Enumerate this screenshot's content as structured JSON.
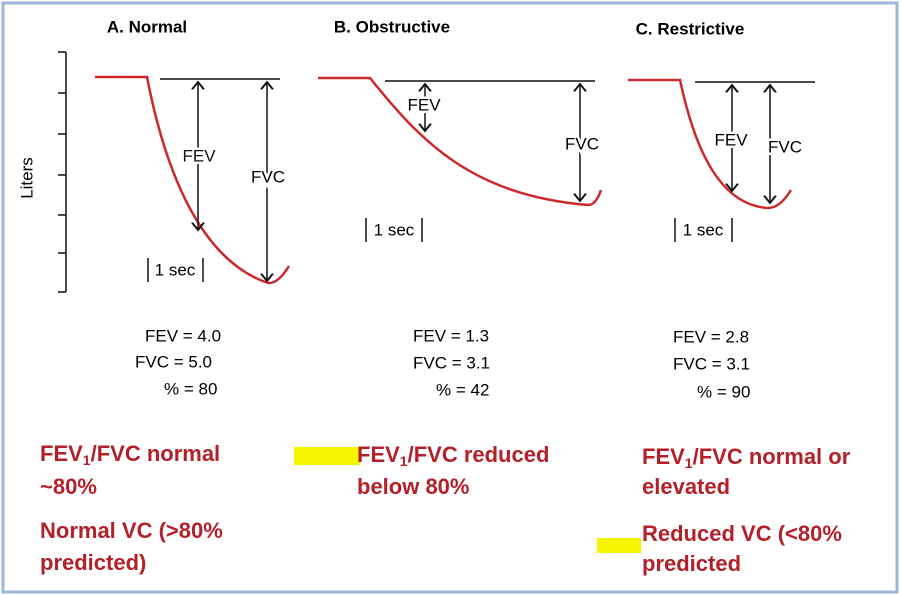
{
  "y_axis_label": "Liters",
  "panels": [
    {
      "title": "A. Normal",
      "fev_label": "FEV",
      "fvc_label": "FVC",
      "time_label": "1 sec",
      "stats": [
        "FEV = 4.0",
        "FVC = 5.0",
        "% = 80"
      ],
      "notes": [
        [
          "FEV",
          "1",
          "/FVC normal"
        ],
        [
          "~80%"
        ],
        [
          "Normal VC (>80%"
        ],
        [
          "predicted)"
        ]
      ]
    },
    {
      "title": "B. Obstructive",
      "fev_label": "FEV",
      "fvc_label": "FVC",
      "time_label": "1 sec",
      "stats": [
        "FEV = 1.3",
        "FVC = 3.1",
        "% = 42"
      ],
      "notes": [
        [
          "FEV",
          "1",
          "/FVC reduced"
        ],
        [
          "below 80%"
        ]
      ]
    },
    {
      "title": "C. Restrictive",
      "fev_label": "FEV",
      "fvc_label": "FVC",
      "time_label": "1 sec",
      "stats": [
        "FEV = 2.8",
        "FVC = 3.1",
        "% = 90"
      ],
      "notes": [
        [
          "FEV",
          "1",
          "/FVC normal or"
        ],
        [
          "elevated"
        ],
        [
          "Reduced VC (<80%"
        ],
        [
          "predicted"
        ]
      ]
    }
  ]
}
